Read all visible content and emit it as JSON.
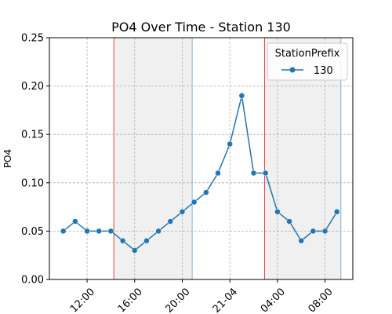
{
  "chart_data": {
    "type": "line",
    "title": "PO4 Over Time - Station 130",
    "xlabel": "",
    "ylabel": "PO4",
    "ylim": [
      0,
      0.25
    ],
    "yticks": [
      0.0,
      0.05,
      0.1,
      0.15,
      0.2,
      0.25
    ],
    "ytick_labels": [
      "0.00",
      "0.05",
      "0.10",
      "0.15",
      "0.20",
      "0.25"
    ],
    "xlim": [
      "2021-04-20 08:50",
      "2021-04-21 10:20"
    ],
    "xticks": [
      "2021-04-20 12:00",
      "2021-04-20 16:00",
      "2021-04-20 20:00",
      "2021-04-21 00:00",
      "2021-04-21 04:00",
      "2021-04-21 08:00"
    ],
    "xtick_labels": [
      "12:00",
      "16:00",
      "20:00",
      "21-04",
      "04:00",
      "08:00"
    ],
    "grid": true,
    "legend": {
      "title": "StationPrefix",
      "position": "top-right"
    },
    "series": [
      {
        "name": "130",
        "color": "#1f77b4",
        "marker": "circle",
        "x": [
          "2021-04-20 10:00",
          "2021-04-20 11:00",
          "2021-04-20 12:00",
          "2021-04-20 13:00",
          "2021-04-20 14:00",
          "2021-04-20 15:00",
          "2021-04-20 16:00",
          "2021-04-20 17:00",
          "2021-04-20 18:00",
          "2021-04-20 19:00",
          "2021-04-20 20:00",
          "2021-04-20 21:00",
          "2021-04-20 22:00",
          "2021-04-20 23:00",
          "2021-04-21 00:00",
          "2021-04-21 01:00",
          "2021-04-21 02:00",
          "2021-04-21 03:00",
          "2021-04-21 04:00",
          "2021-04-21 05:00",
          "2021-04-21 06:00",
          "2021-04-21 07:00",
          "2021-04-21 08:00",
          "2021-04-21 09:00"
        ],
        "y": [
          0.05,
          0.06,
          0.05,
          0.05,
          0.05,
          0.04,
          0.03,
          0.04,
          0.05,
          0.06,
          0.07,
          0.08,
          0.09,
          0.11,
          0.14,
          0.19,
          0.11,
          0.11,
          0.07,
          0.06,
          0.04,
          0.05,
          0.05,
          0.07
        ]
      }
    ],
    "shaded_periods": [
      {
        "start": "2021-04-20 14:15",
        "end": "2021-04-20 20:50",
        "fill": "#f0f0f0",
        "start_line_color": "#e8413c",
        "end_line_color": "#7fb1d6"
      },
      {
        "start": "2021-04-21 02:55",
        "end": "2021-04-21 09:20",
        "fill": "#f0f0f0",
        "start_line_color": "#e8413c",
        "end_line_color": "#7fb1d6"
      }
    ]
  }
}
